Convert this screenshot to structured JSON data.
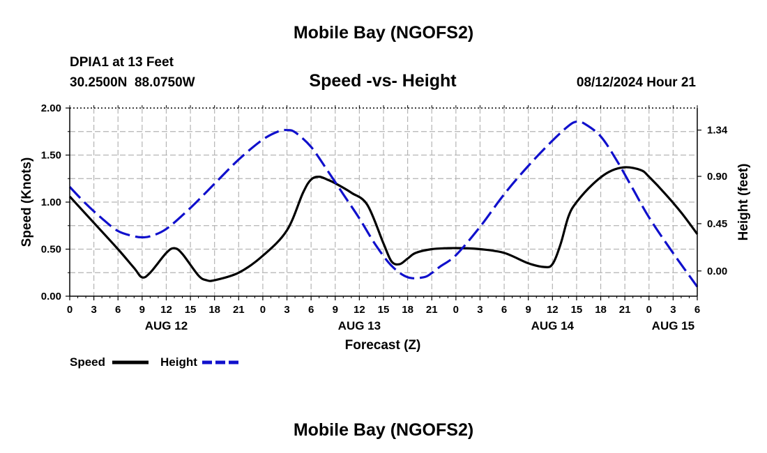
{
  "page": {
    "title": "Mobile Bay (NGOFS2)",
    "footer_title": "Mobile Bay (NGOFS2)"
  },
  "header": {
    "station_line": "DPIA1 at 13 Feet",
    "coords_line": "30.2500N  88.0750W",
    "chart_title": "Speed -vs- Height",
    "date_line": "08/12/2024 Hour 21"
  },
  "legend": {
    "speed_label": "Speed",
    "height_label": "Height"
  },
  "colors": {
    "speed": "#000000",
    "height": "#1010cc",
    "grid": "#b4b4b4"
  },
  "chart_data": {
    "type": "line",
    "title": "Speed -vs- Height",
    "xlabel": "Forecast (Z)",
    "ylabel": "Speed (Knots)",
    "ylabel_right": "Height (feet)",
    "x_range_hours": [
      0,
      78
    ],
    "x_ticks": [
      {
        "h": 0,
        "label": "0"
      },
      {
        "h": 3,
        "label": "3"
      },
      {
        "h": 6,
        "label": "6"
      },
      {
        "h": 9,
        "label": "9"
      },
      {
        "h": 12,
        "label": "12"
      },
      {
        "h": 15,
        "label": "15"
      },
      {
        "h": 18,
        "label": "18"
      },
      {
        "h": 21,
        "label": "21"
      },
      {
        "h": 24,
        "label": "0"
      },
      {
        "h": 27,
        "label": "3"
      },
      {
        "h": 30,
        "label": "6"
      },
      {
        "h": 33,
        "label": "9"
      },
      {
        "h": 36,
        "label": "12"
      },
      {
        "h": 39,
        "label": "15"
      },
      {
        "h": 42,
        "label": "18"
      },
      {
        "h": 45,
        "label": "21"
      },
      {
        "h": 48,
        "label": "0"
      },
      {
        "h": 51,
        "label": "3"
      },
      {
        "h": 54,
        "label": "6"
      },
      {
        "h": 57,
        "label": "9"
      },
      {
        "h": 60,
        "label": "12"
      },
      {
        "h": 63,
        "label": "15"
      },
      {
        "h": 66,
        "label": "18"
      },
      {
        "h": 69,
        "label": "21"
      },
      {
        "h": 72,
        "label": "0"
      },
      {
        "h": 75,
        "label": "3"
      },
      {
        "h": 78,
        "label": "6"
      }
    ],
    "day_labels": [
      {
        "h": 12,
        "label": "AUG 12"
      },
      {
        "h": 36,
        "label": "AUG 13"
      },
      {
        "h": 60,
        "label": "AUG 14"
      },
      {
        "h": 75,
        "label": "AUG 15"
      }
    ],
    "ylim": [
      0,
      2.0
    ],
    "y_ticks": [
      "0.00",
      "0.50",
      "1.00",
      "1.50",
      "2.00"
    ],
    "y_tick_values": [
      0,
      0.5,
      1.0,
      1.5,
      2.0
    ],
    "ylim_right": [
      -0.24,
      1.55
    ],
    "y_ticks_right": [
      "0.00",
      "0.45",
      "0.90",
      "1.34"
    ],
    "y_tick_values_right": [
      0,
      0.45,
      0.9,
      1.34
    ],
    "grid": true,
    "series": [
      {
        "name": "Speed",
        "axis": "left",
        "style": "solid",
        "x": [
          0,
          3,
          6,
          8,
          9,
          10,
          12,
          13,
          14,
          16,
          17,
          18,
          21,
          24,
          27,
          29,
          30,
          31,
          32,
          33,
          35,
          37,
          39,
          40,
          41,
          42,
          43,
          45,
          47,
          49,
          51,
          54,
          57,
          59,
          60,
          61,
          62,
          63,
          65,
          67,
          69,
          71,
          72,
          74,
          76,
          78
        ],
        "values": [
          1.06,
          0.78,
          0.5,
          0.3,
          0.2,
          0.25,
          0.46,
          0.51,
          0.45,
          0.22,
          0.17,
          0.17,
          0.25,
          0.43,
          0.7,
          1.1,
          1.24,
          1.27,
          1.24,
          1.2,
          1.1,
          0.97,
          0.56,
          0.37,
          0.34,
          0.4,
          0.46,
          0.5,
          0.51,
          0.51,
          0.5,
          0.46,
          0.35,
          0.31,
          0.34,
          0.55,
          0.85,
          1.0,
          1.19,
          1.32,
          1.37,
          1.34,
          1.27,
          1.09,
          0.89,
          0.66
        ]
      },
      {
        "name": "Height",
        "axis": "right",
        "style": "dashed",
        "x": [
          0,
          2,
          4,
          6,
          8,
          9,
          10,
          12,
          15,
          18,
          21,
          24,
          26,
          27,
          28,
          30,
          32,
          34,
          36,
          38,
          40,
          42,
          44,
          45,
          46,
          48,
          51,
          54,
          57,
          60,
          62,
          63,
          64,
          66,
          68,
          70,
          72,
          75,
          78
        ],
        "values": [
          0.8,
          0.64,
          0.5,
          0.38,
          0.33,
          0.32,
          0.33,
          0.4,
          0.6,
          0.83,
          1.06,
          1.25,
          1.33,
          1.34,
          1.32,
          1.18,
          0.96,
          0.73,
          0.5,
          0.25,
          0.05,
          -0.06,
          -0.06,
          -0.02,
          0.04,
          0.15,
          0.42,
          0.73,
          1.0,
          1.24,
          1.38,
          1.42,
          1.4,
          1.28,
          1.05,
          0.78,
          0.51,
          0.17,
          -0.15
        ]
      }
    ]
  }
}
